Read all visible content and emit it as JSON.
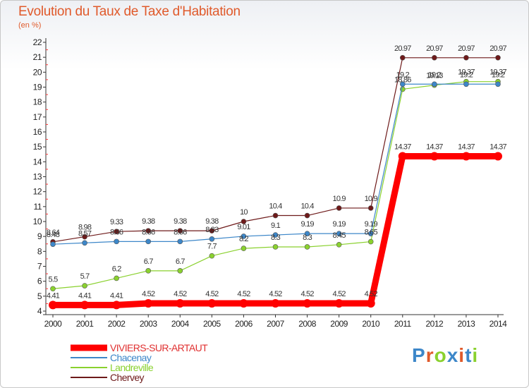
{
  "title": "Evolution du Taux de Taxe d'Habitation",
  "subtitle": "(en %)",
  "brand": "Proxiti",
  "chart_data": {
    "type": "line",
    "title": "Evolution du Taux de Taxe d'Habitation",
    "subtitle": "(en %)",
    "x": [
      "2000",
      "2001",
      "2002",
      "2003",
      "2004",
      "2005",
      "2006",
      "2007",
      "2008",
      "2009",
      "2010",
      "2011",
      "2012",
      "2013",
      "2014"
    ],
    "ylim": [
      4,
      22
    ],
    "yticks": [
      "4",
      "5",
      "6",
      "7",
      "8",
      "9",
      "10",
      "11",
      "12",
      "13",
      "14",
      "15",
      "16",
      "17",
      "18",
      "19",
      "20",
      "21",
      "22"
    ],
    "grid": false,
    "legend": "bottom-left",
    "series": [
      {
        "name": "VIVIERS-SUR-ARTAUT",
        "color": "#ff0000",
        "values": [
          4.41,
          4.41,
          4.41,
          4.52,
          4.52,
          4.52,
          4.52,
          4.52,
          4.52,
          4.52,
          4.52,
          14.37,
          14.37,
          14.37,
          14.37
        ],
        "labels": [
          "4.41",
          "4.41",
          "4.41",
          "4.52",
          "4.52",
          "4.52",
          "4.52",
          "4.52",
          "4.52",
          "4.52",
          "4.52",
          "14.37",
          "14.37",
          "14.37",
          "14.37"
        ]
      },
      {
        "name": "Chacenay",
        "color": "#3d87c9",
        "values": [
          8.48,
          8.57,
          8.66,
          8.66,
          8.66,
          8.83,
          9.01,
          9.1,
          9.19,
          9.19,
          9.19,
          19.2,
          19.2,
          19.2,
          19.2
        ],
        "labels": [
          "8.48",
          "8.57",
          "8.66",
          "8.66",
          "8.66",
          "8.83",
          "9.01",
          "9.1",
          "9.19",
          "9.19",
          "9.19",
          "19.2",
          "19.2",
          "19.2",
          "19.2"
        ]
      },
      {
        "name": "Landreville",
        "color": "#8ad12e",
        "values": [
          5.5,
          5.7,
          6.2,
          6.7,
          6.7,
          7.7,
          8.2,
          8.3,
          8.3,
          8.45,
          8.65,
          18.86,
          19.13,
          19.37,
          19.37
        ],
        "labels": [
          "5.5",
          "5.7",
          "6.2",
          "6.7",
          "6.7",
          "7.7",
          "8.2",
          "8.3",
          "8.3",
          "8.45",
          "8.65",
          "18.86",
          "19.13",
          "19.37",
          "19.37"
        ]
      },
      {
        "name": "Chervey",
        "color": "#6e1a1a",
        "values": [
          8.64,
          8.98,
          9.33,
          9.38,
          9.38,
          9.38,
          10,
          10.4,
          10.4,
          10.9,
          10.9,
          20.97,
          20.97,
          20.97,
          20.97
        ],
        "labels": [
          "8.64",
          "8.98",
          "9.33",
          "9.38",
          "9.38",
          "9.38",
          "10",
          "10.4",
          "10.4",
          "10.9",
          "10.9",
          "20.97",
          "20.97",
          "20.97",
          "20.97"
        ]
      }
    ]
  },
  "colors": {
    "title": "#e05a2b",
    "axis": "#333333",
    "tick_marks": "#ff3333",
    "brand_letters": [
      "#3d87c9",
      "#e05a2b",
      "#8ad12e",
      "#3d87c9",
      "#e05a2b",
      "#3d87c9",
      "#8ad12e"
    ]
  }
}
